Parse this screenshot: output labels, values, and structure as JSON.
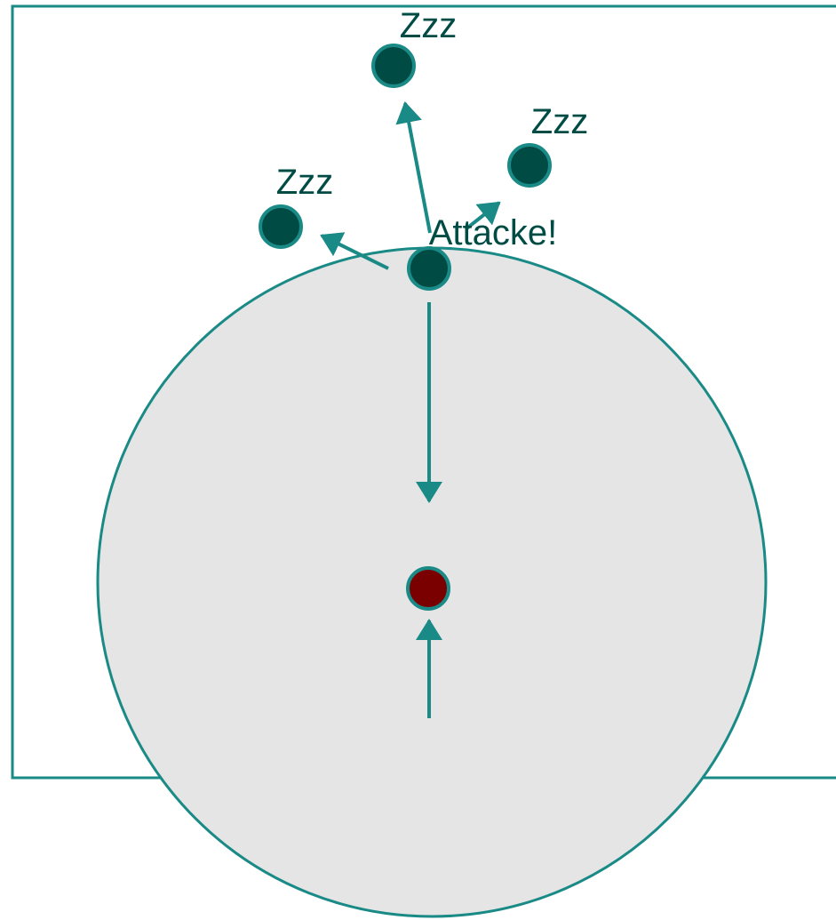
{
  "colors": {
    "stroke": "#1a8a87",
    "circle_fill": "#e5e5e5",
    "node_fill": "#004c45",
    "target_fill": "#7a0000",
    "label_color": "#004c45",
    "background": "#ffffff"
  },
  "labels": {
    "top": "Zzz",
    "right": "Zzz",
    "left": "Zzz",
    "attacker": "Attacke!"
  }
}
